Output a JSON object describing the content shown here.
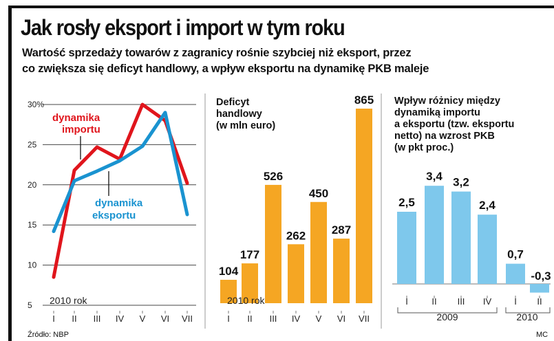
{
  "title": "Jak rosły eksport i import w tym roku",
  "subtitle": [
    "Wartość sprzedaży towarów z zagranicy rośnie szybciej niż eksport, przez",
    "co zwiększa się deficyt handlowy, a wpływ eksportu na dynamikę PKB maleje"
  ],
  "footer": {
    "source": "Źródło: NBP",
    "author": "MC"
  },
  "colors": {
    "import": "#e0151c",
    "export": "#1a93d0",
    "bar_orange": "#f5a623",
    "bar_blue": "#7ec8ec",
    "grid": "#444444"
  },
  "chart_data": [
    {
      "type": "line",
      "title": "",
      "year_label": "2010 rok",
      "categories": [
        "I",
        "II",
        "III",
        "IV",
        "V",
        "VI",
        "VII"
      ],
      "y_tick_labels": [
        "30%",
        "25",
        "20",
        "15",
        "10",
        "5"
      ],
      "ylim": [
        5,
        30
      ],
      "grid": true,
      "series": [
        {
          "name": "dynamika importu",
          "name_lines": [
            "dynamika",
            "importu"
          ],
          "values": [
            8.5,
            21.8,
            24.7,
            23.2,
            30.0,
            28.0,
            20.2
          ]
        },
        {
          "name": "dynamika eksportu",
          "name_lines": [
            "dynamika",
            "eksportu"
          ],
          "values": [
            14.2,
            20.5,
            21.7,
            23.0,
            24.8,
            29.0,
            16.3
          ]
        }
      ]
    },
    {
      "type": "bar",
      "title_lines": [
        "Deficyt",
        "handlowy",
        "(w mln euro)"
      ],
      "year_label": "2010 rok",
      "categories": [
        "I",
        "II",
        "III",
        "IV",
        "V",
        "VI",
        "VII"
      ],
      "values": [
        104,
        177,
        526,
        262,
        450,
        287,
        865
      ],
      "ylim": [
        0,
        865
      ]
    },
    {
      "type": "bar",
      "title_lines": [
        "Wpływ różnicy między",
        "dynamiką importu",
        "a eksportu (tzw. eksportu",
        "netto) na wzrost PKB",
        "(w pkt proc.)"
      ],
      "categories": [
        "I",
        "II",
        "III",
        "IV",
        "I",
        "II"
      ],
      "groups": [
        {
          "label": "2009",
          "categories": [
            "I",
            "II",
            "III",
            "IV"
          ]
        },
        {
          "label": "2010",
          "categories": [
            "I",
            "II"
          ]
        }
      ],
      "values": [
        2.5,
        3.4,
        3.2,
        2.4,
        0.7,
        -0.3
      ],
      "value_labels": [
        "2,5",
        "3,4",
        "3,2",
        "2,4",
        "0,7",
        "-0,3"
      ]
    }
  ]
}
